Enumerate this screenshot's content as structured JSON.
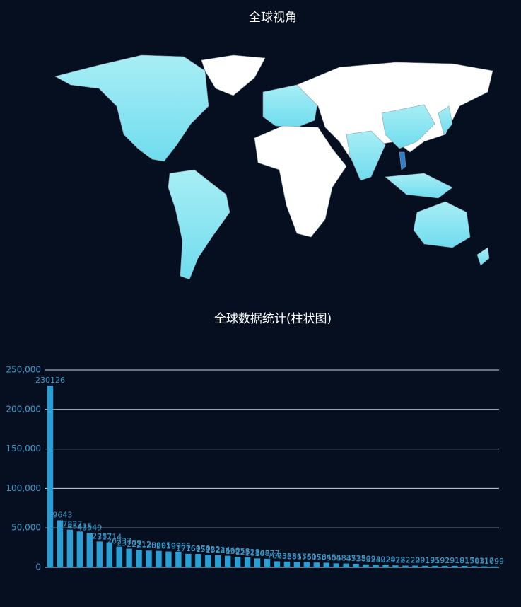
{
  "map_title": "全球视角",
  "chart_data": {
    "type": "bar",
    "title": "全球数据统计(柱状图)",
    "categories": [
      null,
      null,
      null,
      null,
      null,
      null,
      null,
      null,
      null,
      null,
      null,
      null,
      null,
      null,
      null,
      null,
      null,
      null,
      null,
      null,
      null,
      null,
      null,
      null,
      null,
      null,
      null,
      null,
      null,
      null,
      null,
      null,
      null,
      null,
      null,
      null,
      null,
      null,
      null,
      null,
      null,
      null,
      null,
      null,
      null,
      null
    ],
    "values": [
      230126,
      59643,
      47827,
      45415,
      43549,
      32787,
      31714,
      26237,
      23709,
      22212,
      21250,
      20895,
      20109,
      19966,
      17160,
      16970,
      15922,
      15224,
      14660,
      13258,
      12528,
      11347,
      10877,
      7665,
      7328,
      6815,
      6751,
      6076,
      5845,
      5058,
      4837,
      4525,
      3809,
      3242,
      3029,
      2478,
      2222,
      2209,
      2017,
      1959,
      1929,
      1919,
      1817,
      1501,
      1317,
      1099
    ],
    "color": "#2a9fd6",
    "ylim": [
      0,
      250000
    ],
    "yticks": [
      0,
      {
        "value": 50000,
        "label": "50,000"
      },
      {
        "value": 100000,
        "label": "100,000"
      },
      {
        "value": 150000,
        "label": "150,000"
      },
      {
        "value": 200000,
        "label": "200,000"
      },
      {
        "value": 250000,
        "label": "250,000"
      }
    ],
    "grid": true
  }
}
